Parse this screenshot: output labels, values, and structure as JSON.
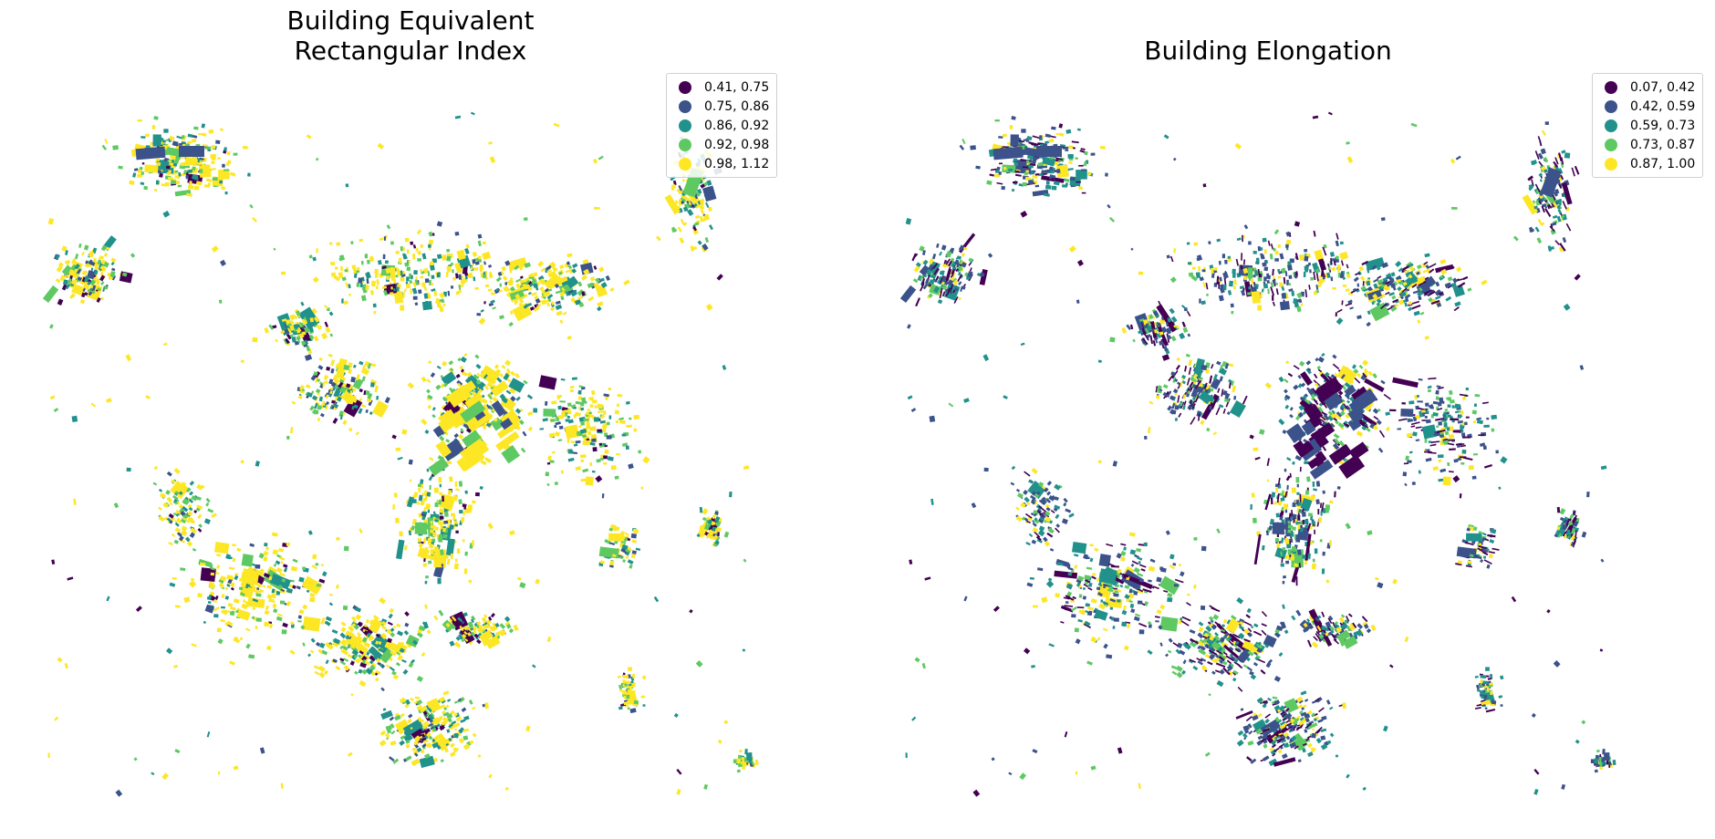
{
  "maps": [
    {
      "title_lines": [
        "Building Equivalent",
        "Rectangular Index"
      ],
      "legend": [
        {
          "label": "0.41, 0.75",
          "color": "#440154"
        },
        {
          "label": "0.75, 0.86",
          "color": "#3b528b"
        },
        {
          "label": "0.86, 0.92",
          "color": "#21918c"
        },
        {
          "label": "0.92, 0.98",
          "color": "#5ec962"
        },
        {
          "label": "0.98, 1.12",
          "color": "#fde725"
        }
      ]
    },
    {
      "title_lines": [
        "Building Elongation"
      ],
      "legend": [
        {
          "label": "0.07, 0.42",
          "color": "#440154"
        },
        {
          "label": "0.42, 0.59",
          "color": "#3b528b"
        },
        {
          "label": "0.59, 0.73",
          "color": "#21918c"
        },
        {
          "label": "0.73, 0.87",
          "color": "#5ec962"
        },
        {
          "label": "0.87, 1.00",
          "color": "#fde725"
        }
      ]
    }
  ]
}
